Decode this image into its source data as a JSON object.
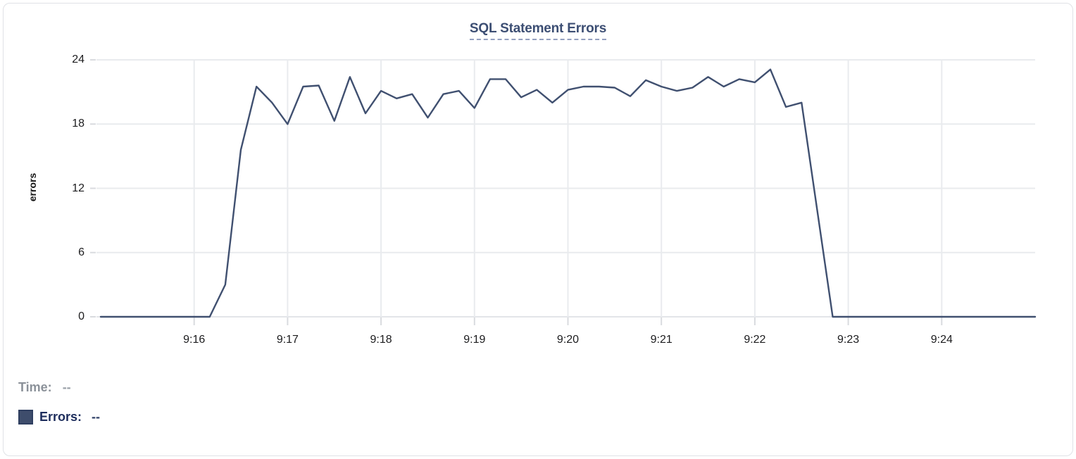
{
  "card": {
    "background": "#ffffff",
    "border_color": "#e0e2e6"
  },
  "header": {
    "title": "SQL Statement Errors"
  },
  "y_axis": {
    "label": "errors"
  },
  "legend": {
    "time_label": "Time:",
    "time_value": "--",
    "errors_label": "Errors:",
    "errors_value": "--"
  },
  "colors": {
    "line": "#405070",
    "title": "#3c4e73",
    "title_underline": "#93a0c0",
    "grid": "#e9ebee",
    "zero_grid": "#e3e5e9",
    "tick_stub": "#d9dbdf",
    "tick_text": "#1c1c1e",
    "legend_time": "#8b9199",
    "legend_errors": "#1d2d5c",
    "swatch_fill": "#3e4d6c",
    "swatch_border": "#2f3f60"
  },
  "chart_data": {
    "type": "line",
    "title": "SQL Statement Errors",
    "xlabel": "",
    "ylabel": "errors",
    "ylim": [
      0,
      24
    ],
    "y_ticks": [
      0,
      6,
      12,
      18,
      24
    ],
    "x_ticks": [
      "9:16",
      "9:17",
      "9:18",
      "9:19",
      "9:20",
      "9:21",
      "9:22",
      "9:23",
      "9:24"
    ],
    "x_range": [
      "9:15:00",
      "9:25:00"
    ],
    "grid": true,
    "legend_position": "bottom-left",
    "series": [
      {
        "name": "Errors",
        "color": "#405070",
        "x": [
          "9:15:00",
          "9:15:10",
          "9:15:20",
          "9:15:30",
          "9:15:40",
          "9:15:50",
          "9:16:00",
          "9:16:10",
          "9:16:20",
          "9:16:30",
          "9:16:40",
          "9:16:50",
          "9:17:00",
          "9:17:10",
          "9:17:20",
          "9:17:30",
          "9:17:40",
          "9:17:50",
          "9:18:00",
          "9:18:10",
          "9:18:20",
          "9:18:30",
          "9:18:40",
          "9:18:50",
          "9:19:00",
          "9:19:10",
          "9:19:20",
          "9:19:30",
          "9:19:40",
          "9:19:50",
          "9:20:00",
          "9:20:10",
          "9:20:20",
          "9:20:30",
          "9:20:40",
          "9:20:50",
          "9:21:00",
          "9:21:10",
          "9:21:20",
          "9:21:30",
          "9:21:40",
          "9:21:50",
          "9:22:00",
          "9:22:10",
          "9:22:20",
          "9:22:30",
          "9:22:40",
          "9:22:50",
          "9:23:00",
          "9:23:10",
          "9:23:20",
          "9:23:30",
          "9:23:40",
          "9:23:50",
          "9:24:00",
          "9:24:10",
          "9:24:20",
          "9:24:30",
          "9:24:40",
          "9:24:50",
          "9:25:00"
        ],
        "values": [
          0,
          0,
          0,
          0,
          0,
          0,
          0,
          0,
          3,
          15.6,
          21.5,
          20,
          18,
          21.5,
          21.6,
          18.3,
          22.4,
          19,
          21.1,
          20.4,
          20.8,
          18.6,
          20.8,
          21.1,
          19.5,
          22.2,
          22.2,
          20.5,
          21.2,
          20,
          21.2,
          21.5,
          21.5,
          21.4,
          20.6,
          22.1,
          21.5,
          21.1,
          21.4,
          22.4,
          21.5,
          22.2,
          21.9,
          23.1,
          19.6,
          20,
          10,
          0,
          0,
          0,
          0,
          0,
          0,
          0,
          0,
          0,
          0,
          0,
          0,
          0,
          0
        ]
      }
    ]
  }
}
